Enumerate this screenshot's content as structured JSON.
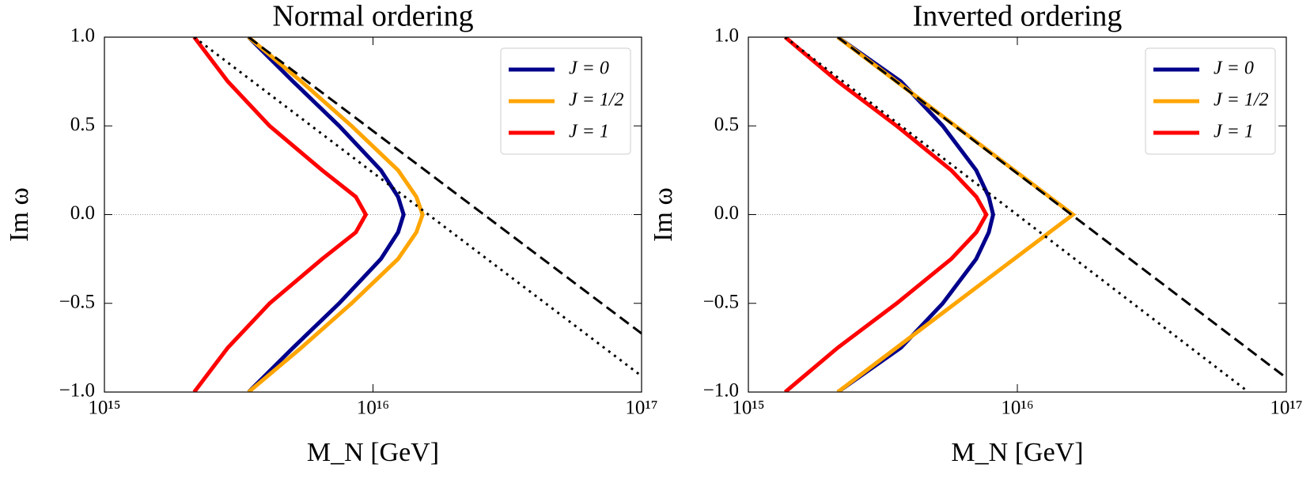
{
  "chart_data": [
    {
      "type": "line",
      "title": "Normal ordering",
      "x_label": "M_N [GeV]",
      "y_label": "Im ω",
      "xscale": "log",
      "xlim": [
        1000000000000000.0,
        1e+17
      ],
      "ylim": [
        -1,
        1
      ],
      "xticks": [
        {
          "value": 1000000000000000.0,
          "label": "10¹⁵"
        },
        {
          "value": 1e+16,
          "label": "10¹⁶"
        },
        {
          "value": 1e+17,
          "label": "10¹⁷"
        }
      ],
      "yticks": [
        {
          "value": -1,
          "label": "−1.0"
        },
        {
          "value": -0.5,
          "label": "−0.5"
        },
        {
          "value": 0,
          "label": "0.0"
        },
        {
          "value": 0.5,
          "label": "0.5"
        },
        {
          "value": 1,
          "label": "1.0"
        }
      ],
      "reference_line": 0,
      "legend": "upper right",
      "series": [
        {
          "name": "J = 0",
          "color": "#00008b",
          "dash": "solid",
          "x": [
            3440000000000000.0,
            5040000000000000.0,
            7480000000000000.0,
            1.07e+16,
            1.24e+16,
            1.3e+16,
            1.24e+16,
            1.07e+16,
            7480000000000000.0,
            5040000000000000.0,
            3440000000000000.0
          ],
          "values": [
            1,
            0.75,
            0.5,
            0.25,
            0.1,
            0,
            -0.1,
            -0.25,
            -0.5,
            -0.75,
            -1
          ]
        },
        {
          "name": "J = 1/2",
          "color": "#ffa500",
          "dash": "solid",
          "x": [
            3440000000000000.0,
            5410000000000000.0,
            8320000000000000.0,
            1.24e+16,
            1.45e+16,
            1.53e+16,
            1.45e+16,
            1.24e+16,
            8320000000000000.0,
            5410000000000000.0,
            3440000000000000.0
          ],
          "values": [
            1,
            0.75,
            0.5,
            0.25,
            0.1,
            0,
            -0.1,
            -0.25,
            -0.5,
            -0.75,
            -1
          ]
        },
        {
          "name": "J = 1",
          "color": "#ff0000",
          "dash": "solid",
          "x": [
            2160000000000000.0,
            2880000000000000.0,
            4120000000000000.0,
            6470000000000000.0,
            8630000000000000.0,
            9400000000000000.0,
            8630000000000000.0,
            6470000000000000.0,
            4120000000000000.0,
            2880000000000000.0,
            2160000000000000.0
          ],
          "values": [
            1,
            0.75,
            0.5,
            0.25,
            0.1,
            0,
            -0.1,
            -0.25,
            -0.5,
            -0.75,
            -1
          ]
        },
        {
          "color": "#000000",
          "dash": "dashed",
          "x": [
            3440000000000000.0,
            1e+17
          ],
          "values": [
            1,
            -0.67
          ]
        },
        {
          "color": "#000000",
          "dash": "dotted",
          "x": [
            2160000000000000.0,
            1e+17
          ],
          "values": [
            1,
            -0.91
          ]
        }
      ]
    },
    {
      "type": "line",
      "title": "Inverted ordering",
      "x_label": "M_N [GeV]",
      "y_label": "Im ω",
      "xscale": "log",
      "xlim": [
        1000000000000000.0,
        1e+17
      ],
      "ylim": [
        -1,
        1
      ],
      "xticks": [
        {
          "value": 1000000000000000.0,
          "label": "10¹⁵"
        },
        {
          "value": 1e+16,
          "label": "10¹⁶"
        },
        {
          "value": 1e+17,
          "label": "10¹⁷"
        }
      ],
      "yticks": [
        {
          "value": -1,
          "label": "−1.0"
        },
        {
          "value": -0.5,
          "label": "−0.5"
        },
        {
          "value": 0,
          "label": "0.0"
        },
        {
          "value": 0.5,
          "label": "0.5"
        },
        {
          "value": 1,
          "label": "1.0"
        }
      ],
      "reference_line": 0,
      "legend": "upper right",
      "series": [
        {
          "name": "J = 0",
          "color": "#00008b",
          "dash": "solid",
          "x": [
            2150000000000000.0,
            3690000000000000.0,
            5280000000000000.0,
            7030000000000000.0,
            7830000000000000.0,
            8130000000000000.0,
            7830000000000000.0,
            7030000000000000.0,
            5280000000000000.0,
            3690000000000000.0,
            2150000000000000.0
          ],
          "values": [
            1,
            0.75,
            0.5,
            0.25,
            0.1,
            0,
            -0.1,
            -0.25,
            -0.5,
            -0.75,
            -1
          ]
        },
        {
          "name": "J = 1/2",
          "color": "#ffa500",
          "dash": "solid",
          "x": [
            2150000000000000.0,
            1.61e+16,
            2150000000000000.0
          ],
          "values": [
            1,
            0,
            -1
          ]
        },
        {
          "name": "J = 1",
          "color": "#ff0000",
          "dash": "solid",
          "x": [
            1370000000000000.0,
            2150000000000000.0,
            3560000000000000.0,
            5680000000000000.0,
            7040000000000000.0,
            7670000000000000.0,
            7040000000000000.0,
            5680000000000000.0,
            3560000000000000.0,
            2150000000000000.0,
            1370000000000000.0
          ],
          "values": [
            1,
            0.75,
            0.5,
            0.25,
            0.1,
            0,
            -0.1,
            -0.25,
            -0.5,
            -0.75,
            -1
          ]
        },
        {
          "color": "#000000",
          "dash": "dashed",
          "x": [
            2150000000000000.0,
            1e+17
          ],
          "values": [
            1,
            -0.92
          ]
        },
        {
          "color": "#000000",
          "dash": "dotted",
          "x": [
            1370000000000000.0,
            7.24e+16
          ],
          "values": [
            1,
            -1
          ]
        }
      ]
    }
  ]
}
